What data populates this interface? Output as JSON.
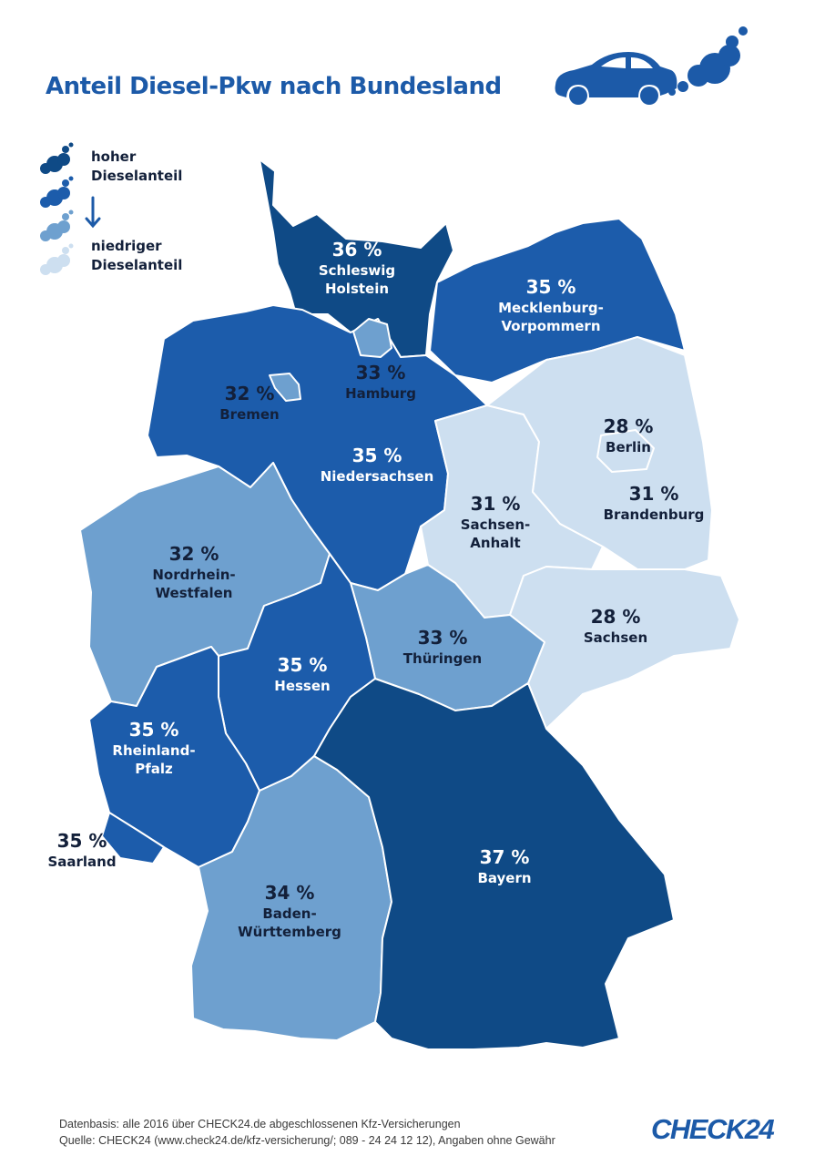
{
  "title": "Anteil Diesel-Pkw nach Bundesland",
  "legend": {
    "high": [
      "hoher",
      "Dieselanteil"
    ],
    "low": [
      "niedriger",
      "Dieselanteil"
    ],
    "levels": [
      {
        "level": "highest",
        "color": "#0f4a86"
      },
      {
        "level": "high",
        "color": "#1c5cab"
      },
      {
        "level": "medium",
        "color": "#6ea0cf"
      },
      {
        "level": "low",
        "color": "#cddff0"
      }
    ],
    "arrow_icon": "arrow-down-icon",
    "cloud_icon": "exhaust-cloud-icon"
  },
  "logo_icons": [
    "car-icon",
    "exhaust-cloud-icon"
  ],
  "states": [
    {
      "name": "Schleswig\nHolstein",
      "pct": "36 %",
      "value": 36,
      "color": "#0f4a86"
    },
    {
      "name": "Mecklenburg-\nVorpommern",
      "pct": "35 %",
      "value": 35,
      "color": "#1c5cab"
    },
    {
      "name": "Hamburg",
      "pct": "33 %",
      "value": 33,
      "color": "#6ea0cf"
    },
    {
      "name": "Bremen",
      "pct": "32 %",
      "value": 32,
      "color": "#6ea0cf"
    },
    {
      "name": "Niedersachsen",
      "pct": "35 %",
      "value": 35,
      "color": "#1c5cab"
    },
    {
      "name": "Berlin",
      "pct": "28 %",
      "value": 28,
      "color": "#cddff0"
    },
    {
      "name": "Brandenburg",
      "pct": "31 %",
      "value": 31,
      "color": "#cddff0"
    },
    {
      "name": "Sachsen-\nAnhalt",
      "pct": "31 %",
      "value": 31,
      "color": "#cddff0"
    },
    {
      "name": "Nordrhein-\nWestfalen",
      "pct": "32 %",
      "value": 32,
      "color": "#6ea0cf"
    },
    {
      "name": "Sachsen",
      "pct": "28 %",
      "value": 28,
      "color": "#cddff0"
    },
    {
      "name": "Thüringen",
      "pct": "33 %",
      "value": 33,
      "color": "#6ea0cf"
    },
    {
      "name": "Hessen",
      "pct": "35 %",
      "value": 35,
      "color": "#1c5cab"
    },
    {
      "name": "Rheinland-\nPfalz",
      "pct": "35 %",
      "value": 35,
      "color": "#1c5cab"
    },
    {
      "name": "Saarland",
      "pct": "35 %",
      "value": 35,
      "color": "#1c5cab"
    },
    {
      "name": "Baden-\nWürttemberg",
      "pct": "34 %",
      "value": 34,
      "color": "#6ea0cf"
    },
    {
      "name": "Bayern",
      "pct": "37 %",
      "value": 37,
      "color": "#0f4a86"
    }
  ],
  "footer": {
    "line1": "Datenbasis: alle 2016 über CHECK24.de abgeschlossenen Kfz-Versicherungen",
    "line2": "Quelle: CHECK24 (www.check24.de/kfz-versicherung/; 089 - 24 24 12 12), Angaben ohne Gewähr"
  },
  "brand_logo": "CHECK24",
  "brand_color": "#1c5aa8"
}
